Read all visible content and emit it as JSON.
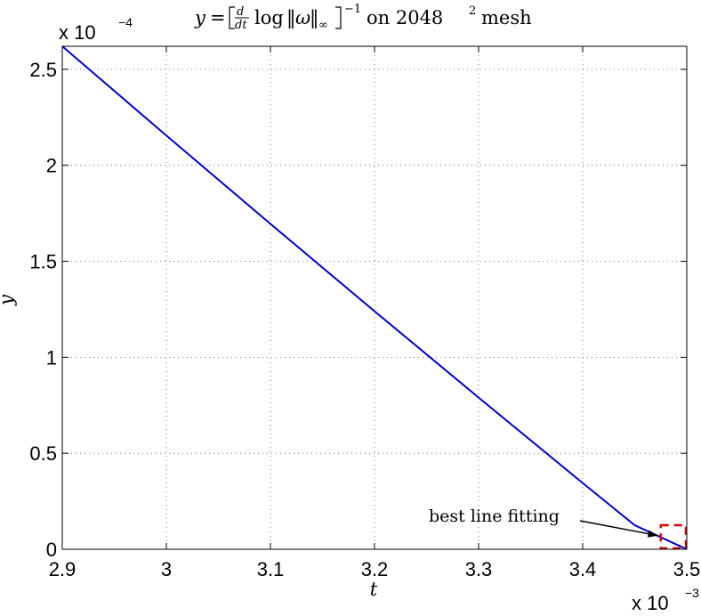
{
  "chart_data": {
    "type": "line",
    "title_parts": {
      "lhs": "y",
      "eq": "=",
      "frac_num": "d",
      "frac_den": "dt",
      "log": "log",
      "norm_var": "ω",
      "norm_sub": "∞",
      "power": "−1",
      "suffix": "on 2048",
      "suffix_exp": "2",
      "suffix_tail": "mesh"
    },
    "xlabel": "t",
    "ylabel": "y",
    "x_multiplier": {
      "base": "x 10",
      "exp": "−3"
    },
    "y_multiplier": {
      "base": "x 10",
      "exp": "−4"
    },
    "xlim": [
      2.9,
      3.5
    ],
    "ylim": [
      0,
      2.62
    ],
    "xticks": [
      2.9,
      3.0,
      3.1,
      3.2,
      3.3,
      3.4,
      3.5
    ],
    "xtick_labels": [
      "2.9",
      "3",
      "3.1",
      "3.2",
      "3.3",
      "3.4",
      "3.5"
    ],
    "yticks": [
      0,
      0.5,
      1,
      1.5,
      2,
      2.5
    ],
    "ytick_labels": [
      "0",
      "0.5",
      "1",
      "1.5",
      "2",
      "2.5"
    ],
    "grid": true,
    "series": [
      {
        "color": "#0000cc",
        "x": [
          2.9,
          3.0,
          3.1,
          3.2,
          3.3,
          3.4,
          3.45,
          3.5
        ],
        "y": [
          2.62,
          2.155,
          1.695,
          1.24,
          0.79,
          0.345,
          0.125,
          0.0
        ]
      }
    ],
    "annotation": {
      "text": "best line fitting",
      "box_x": [
        3.475,
        3.513
      ],
      "box_y": [
        0.005,
        0.125
      ],
      "box_color": "#dd0000"
    }
  }
}
